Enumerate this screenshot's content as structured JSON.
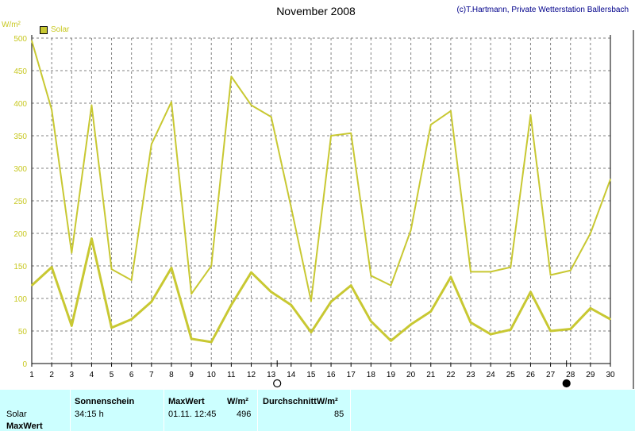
{
  "header": {
    "title": "November 2008",
    "copyright": "(c)T.Hartmann, Private Wetterstation Ballersbach",
    "unit_label": "W/m²",
    "legend_label": "Solar"
  },
  "chart_data": {
    "type": "line",
    "title": "November 2008",
    "ylabel": "W/m²",
    "ylim": [
      0,
      500
    ],
    "xlim": [
      1,
      30
    ],
    "y_ticks": [
      0,
      50,
      100,
      150,
      200,
      250,
      300,
      350,
      400,
      450,
      500
    ],
    "x": [
      1,
      2,
      3,
      4,
      5,
      6,
      7,
      8,
      9,
      10,
      11,
      12,
      13,
      14,
      15,
      16,
      17,
      18,
      19,
      20,
      21,
      22,
      23,
      24,
      25,
      26,
      27,
      28,
      29,
      30
    ],
    "grid": true,
    "legend_position": "top-left",
    "series": [
      {
        "name": "Solar",
        "role": "max",
        "color": "#c8c832",
        "values": [
          496,
          390,
          170,
          397,
          145,
          128,
          337,
          402,
          107,
          150,
          441,
          397,
          379,
          240,
          96,
          350,
          354,
          135,
          120,
          205,
          367,
          388,
          141,
          141,
          148,
          382,
          136,
          143,
          200,
          283
        ]
      },
      {
        "name": "Solar",
        "role": "average",
        "color": "#c8c832",
        "values": [
          120,
          148,
          58,
          192,
          55,
          68,
          95,
          147,
          38,
          33,
          90,
          140,
          110,
          90,
          48,
          95,
          120,
          65,
          35,
          60,
          80,
          133,
          63,
          45,
          52,
          110,
          50,
          53,
          85,
          68
        ]
      }
    ],
    "moon_markers": [
      {
        "day": 13.3,
        "phase": "full-moon"
      },
      {
        "day": 27.8,
        "phase": "new-moon"
      }
    ]
  },
  "table": {
    "row_labels": [
      "Solar",
      "MaxWert"
    ],
    "col_sonnenschein": "Sonnenschein",
    "val_sonnenschein": "34:15 h",
    "col_maxwert": "MaxWert",
    "col_maxwert_unit": "W/m²",
    "val_maxwert_date": "01.11.  12:45",
    "val_maxwert": "496",
    "col_durchschnitt": "DurchschnittW/m²",
    "val_durchschnitt": "85"
  },
  "colors": {
    "series": "#c8c832",
    "axis_text": "#c8c820",
    "grid": "#808080",
    "table_bg": "#ccffff"
  }
}
